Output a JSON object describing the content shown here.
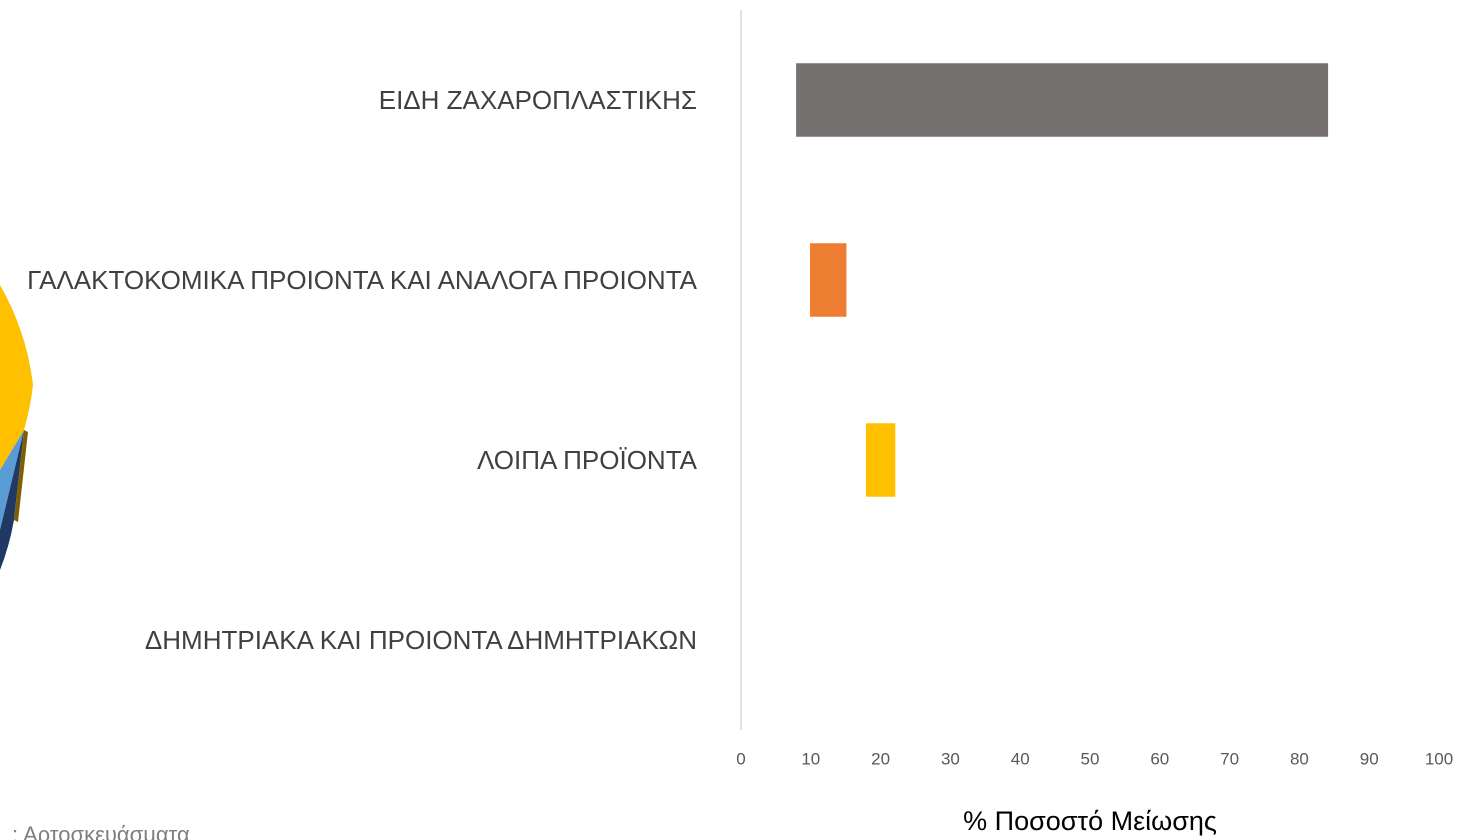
{
  "chart_data": {
    "type": "floating-bar",
    "categories": [
      "ΕΙΔΗ ΖΑΧΑΡΟΠΛΑΣΤΙΚΗΣ",
      "ΓΑΛΑΚΤΟΚΟΜΙΚΑ ΠΡΟΙΟΝΤΑ ΚΑΙ ΑΝΑΛΟΓΑ ΠΡΟΙΟΝΤΑ",
      "ΛΟΙΠΑ ΠΡΟΪΟΝΤΑ",
      "ΔΗΜΗΤΡΙΑΚΑ ΚΑΙ ΠΡΟΙΟΝΤΑ ΔΗΜΗΤΡΙΑΚΩΝ"
    ],
    "offsets": [
      8,
      10,
      18,
      15
    ],
    "values": [
      76,
      5,
      4,
      0
    ],
    "colors": [
      "#767171",
      "#ed7d31",
      "#ffc000",
      "#2f5597"
    ],
    "xlabel": "% Ποσοστό Μείωσης",
    "xlim": [
      0,
      100
    ],
    "xticks": [
      0,
      10,
      20,
      30,
      40,
      50,
      60,
      70,
      80,
      90,
      100
    ],
    "grid": false
  },
  "fragment_label": ": Αρτοσκευάσματα"
}
